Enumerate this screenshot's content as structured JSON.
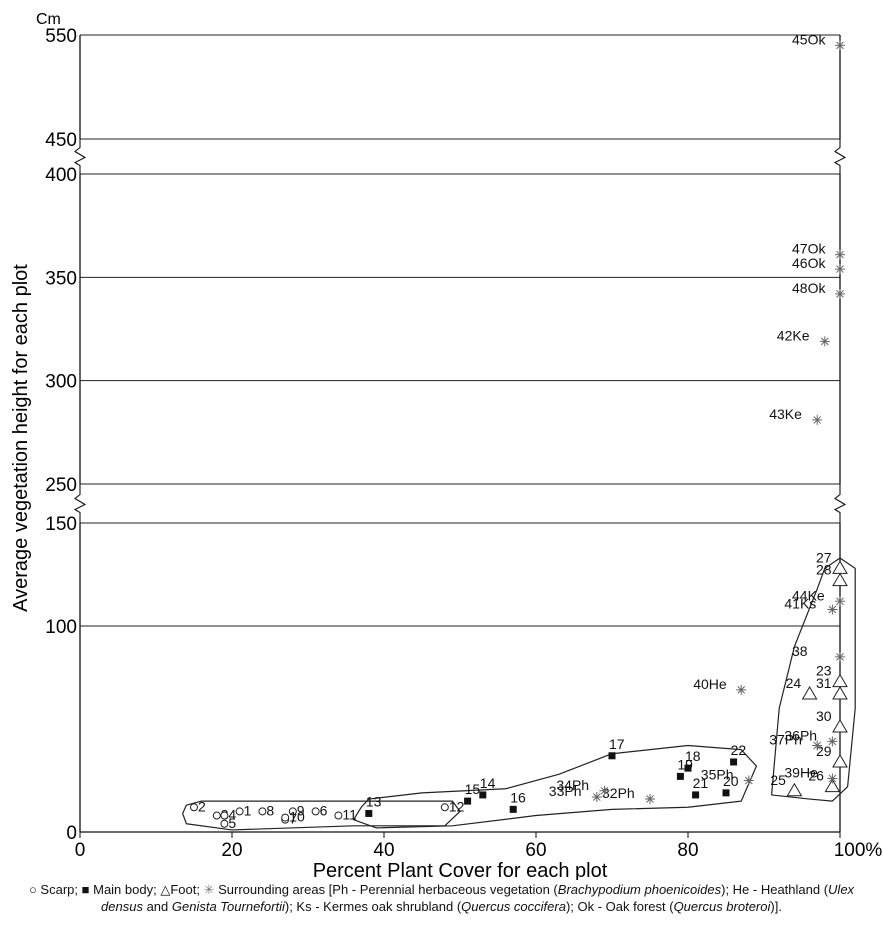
{
  "chart_data": {
    "type": "scatter",
    "y_unit_label": "Cm",
    "xlabel": "Percent Plant Cover for each plot",
    "ylabel": "Average vegetation height for each plot",
    "xlim": [
      0,
      100
    ],
    "x_tick_labels": [
      "0",
      "20",
      "40",
      "60",
      "80",
      "100%"
    ],
    "y_axis_segments": [
      {
        "range": [
          0,
          150
        ],
        "ticks": [
          "0",
          "100",
          "150"
        ]
      },
      {
        "range": [
          250,
          400
        ],
        "ticks": [
          "250",
          "300",
          "350",
          "400"
        ]
      },
      {
        "range": [
          450,
          550
        ],
        "ticks": [
          "450",
          "550"
        ]
      }
    ],
    "axis_breaks_y": [
      [
        150,
        250
      ],
      [
        400,
        450
      ]
    ],
    "grid": true,
    "series": [
      {
        "name": "Scarp",
        "marker": "open-circle",
        "points": [
          {
            "label": "1",
            "x": 21,
            "y": 10
          },
          {
            "label": "2",
            "x": 15,
            "y": 12
          },
          {
            "label": "3",
            "x": 18,
            "y": 8
          },
          {
            "label": "4",
            "x": 19,
            "y": 8
          },
          {
            "label": "5",
            "x": 19,
            "y": 4
          },
          {
            "label": "6",
            "x": 31,
            "y": 10
          },
          {
            "label": "7",
            "x": 27,
            "y": 6
          },
          {
            "label": "8",
            "x": 24,
            "y": 10
          },
          {
            "label": "9",
            "x": 28,
            "y": 10
          },
          {
            "label": "10",
            "x": 27,
            "y": 7
          },
          {
            "label": "11",
            "x": 34,
            "y": 8
          },
          {
            "label": "12",
            "x": 48,
            "y": 12
          }
        ]
      },
      {
        "name": "Main body",
        "marker": "filled-square",
        "points": [
          {
            "label": "13",
            "x": 38,
            "y": 9
          },
          {
            "label": "14",
            "x": 53,
            "y": 18
          },
          {
            "label": "15",
            "x": 51,
            "y": 15
          },
          {
            "label": "16",
            "x": 57,
            "y": 11
          },
          {
            "label": "17",
            "x": 70,
            "y": 37
          },
          {
            "label": "18",
            "x": 80,
            "y": 31
          },
          {
            "label": "19",
            "x": 79,
            "y": 27
          },
          {
            "label": "20",
            "x": 85,
            "y": 19
          },
          {
            "label": "21",
            "x": 81,
            "y": 18
          },
          {
            "label": "22",
            "x": 86,
            "y": 34
          }
        ]
      },
      {
        "name": "Foot",
        "marker": "open-triangle",
        "points": [
          {
            "label": "23",
            "x": 100,
            "y": 73
          },
          {
            "label": "24",
            "x": 96,
            "y": 67
          },
          {
            "label": "25",
            "x": 94,
            "y": 20
          },
          {
            "label": "26",
            "x": 99,
            "y": 22
          },
          {
            "label": "27",
            "x": 100,
            "y": 128
          },
          {
            "label": "28",
            "x": 100,
            "y": 122
          },
          {
            "label": "29",
            "x": 100,
            "y": 34
          },
          {
            "label": "30",
            "x": 100,
            "y": 51
          },
          {
            "label": "31",
            "x": 100,
            "y": 67
          }
        ]
      },
      {
        "name": "Surrounding areas",
        "marker": "asterisk",
        "points": [
          {
            "label": "32Ph",
            "x": 75,
            "y": 16
          },
          {
            "label": "33Ph",
            "x": 68,
            "y": 17
          },
          {
            "label": "34Ph",
            "x": 69,
            "y": 20
          },
          {
            "label": "35Ph",
            "x": 88,
            "y": 25
          },
          {
            "label": "36Ph",
            "x": 99,
            "y": 44
          },
          {
            "label": "37Ph",
            "x": 97,
            "y": 42
          },
          {
            "label": "38",
            "x": 100,
            "y": 85
          },
          {
            "label": "39He",
            "x": 99,
            "y": 26
          },
          {
            "label": "40He",
            "x": 87,
            "y": 69
          },
          {
            "label": "41Ks",
            "x": 99,
            "y": 108
          },
          {
            "label": "42Ke",
            "x": 98,
            "y": 319
          },
          {
            "label": "43Ke",
            "x": 97,
            "y": 281
          },
          {
            "label": "44Ke",
            "x": 100,
            "y": 112
          },
          {
            "label": "45Ok",
            "x": 100,
            "y": 540
          },
          {
            "label": "46Ok",
            "x": 100,
            "y": 354
          },
          {
            "label": "47Ok",
            "x": 100,
            "y": 361
          },
          {
            "label": "48Ok",
            "x": 100,
            "y": 342
          }
        ]
      }
    ],
    "groups_outlined": [
      "Scarp",
      "Main body",
      "Foot"
    ],
    "legend_position": "bottom"
  },
  "caption": {
    "scarp": "Scarp;",
    "main_body": "Main body;",
    "foot": "Foot;",
    "surrounding_prefix": "Surrounding areas [Ph - Perennial herbaceous vegetation (",
    "brachy": "Brachypodium phoenicoides",
    "he_prefix": "); He - Heathland (",
    "ulex": "Ulex densus",
    "and": " and ",
    "genista": "Genista Tournefortii",
    "ks_prefix": "); Ks - Kermes oak shrubland (",
    "quercus_c": "Quercus coccifera",
    "ok_prefix": "); Ok - Oak forest (",
    "quercus_b": "Quercus broteroi",
    "suffix": ")]."
  }
}
